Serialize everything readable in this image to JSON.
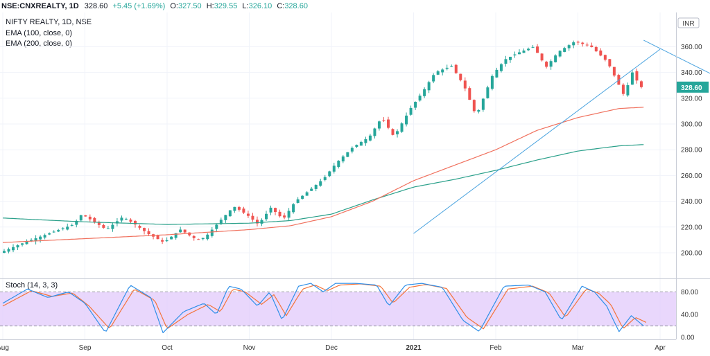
{
  "quote": {
    "symbol": "NSE:CNXREALTY, 1D",
    "last": "328.60",
    "change": "+5.45 (+1.69%)",
    "open_label": "O:",
    "open": "327.50",
    "high_label": "H:",
    "high": "329.55",
    "low_label": "L:",
    "low": "326.10",
    "close_label": "C:",
    "close": "328.60"
  },
  "legend": {
    "title": "NIFTY REALTY, 1D, NSE",
    "ema100": "EMA (100, close, 0)",
    "ema200": "EMA (200, close, 0)",
    "stoch": "Stoch (14, 3, 3)"
  },
  "currency_badge": "INR",
  "last_price_tag": "328.60",
  "colors": {
    "up": "#26a69a",
    "down": "#ef5350",
    "ema100": "#f0715e",
    "ema200": "#2aa08a",
    "trendline": "#4aa3df",
    "stoch_k": "#2f8fe8",
    "stoch_d": "#f4743b",
    "stoch_band": "#e2c9fb",
    "price_tag": "#26a69a"
  },
  "chart_data": [
    {
      "type": "candlestick",
      "y_ticks": [
        200,
        220,
        240,
        260,
        280,
        300,
        320,
        340,
        360
      ],
      "ylim": [
        190,
        375
      ],
      "x_labels": [
        "Aug",
        "Sep",
        "Oct",
        "Nov",
        "Dec",
        "2021",
        "Feb",
        "Mar",
        "Apr"
      ],
      "bullish_trendline": [
        [
          5.0,
          215
        ],
        [
          8.0,
          358
        ]
      ],
      "bearish_trendline": [
        [
          7.8,
          365
        ],
        [
          8.9,
          330
        ]
      ],
      "ema100": [
        [
          0.0,
          208
        ],
        [
          1.0,
          211
        ],
        [
          2.0,
          214
        ],
        [
          3.0,
          218
        ],
        [
          3.5,
          221
        ],
        [
          4.0,
          228
        ],
        [
          4.5,
          240
        ],
        [
          5.0,
          256
        ],
        [
          5.5,
          268
        ],
        [
          6.0,
          280
        ],
        [
          6.5,
          295
        ],
        [
          7.0,
          305
        ],
        [
          7.5,
          312
        ],
        [
          7.8,
          313
        ]
      ],
      "ema200": [
        [
          0.0,
          227
        ],
        [
          1.0,
          224
        ],
        [
          2.0,
          222
        ],
        [
          3.0,
          223
        ],
        [
          3.5,
          225
        ],
        [
          4.0,
          230
        ],
        [
          4.5,
          241
        ],
        [
          5.0,
          251
        ],
        [
          5.5,
          257
        ],
        [
          6.0,
          264
        ],
        [
          6.5,
          272
        ],
        [
          7.0,
          279
        ],
        [
          7.5,
          283
        ],
        [
          7.8,
          284
        ]
      ],
      "anchors": [
        [
          0.0,
          200
        ],
        [
          0.3,
          208
        ],
        [
          0.6,
          215
        ],
        [
          0.9,
          222
        ],
        [
          1.0,
          230
        ],
        [
          1.1,
          226
        ],
        [
          1.3,
          218
        ],
        [
          1.5,
          228
        ],
        [
          1.65,
          222
        ],
        [
          1.8,
          215
        ],
        [
          2.0,
          208
        ],
        [
          2.2,
          218
        ],
        [
          2.4,
          210
        ],
        [
          2.5,
          212
        ],
        [
          2.7,
          226
        ],
        [
          2.85,
          236
        ],
        [
          3.0,
          230
        ],
        [
          3.15,
          222
        ],
        [
          3.3,
          235
        ],
        [
          3.45,
          226
        ],
        [
          3.6,
          240
        ],
        [
          3.8,
          250
        ],
        [
          3.95,
          258
        ],
        [
          4.1,
          270
        ],
        [
          4.3,
          282
        ],
        [
          4.5,
          290
        ],
        [
          4.65,
          305
        ],
        [
          4.8,
          290
        ],
        [
          5.0,
          312
        ],
        [
          5.15,
          325
        ],
        [
          5.3,
          340
        ],
        [
          5.5,
          345
        ],
        [
          5.65,
          330
        ],
        [
          5.8,
          306
        ],
        [
          6.0,
          338
        ],
        [
          6.15,
          350
        ],
        [
          6.3,
          355
        ],
        [
          6.5,
          360
        ],
        [
          6.65,
          344
        ],
        [
          6.8,
          356
        ],
        [
          7.0,
          364
        ],
        [
          7.2,
          360
        ],
        [
          7.4,
          348
        ],
        [
          7.6,
          322
        ],
        [
          7.7,
          340
        ],
        [
          7.8,
          328.6
        ]
      ]
    },
    {
      "type": "line",
      "name": "Stoch (14, 3, 3)",
      "y_ticks": [
        0.0,
        40.0,
        80.0
      ],
      "ylim": [
        0,
        100
      ],
      "band": [
        20,
        80
      ],
      "k_anchors": [
        [
          0.0,
          60
        ],
        [
          0.3,
          85
        ],
        [
          0.55,
          70
        ],
        [
          0.8,
          80
        ],
        [
          1.0,
          60
        ],
        [
          1.25,
          8
        ],
        [
          1.55,
          92
        ],
        [
          1.8,
          70
        ],
        [
          1.95,
          8
        ],
        [
          2.2,
          45
        ],
        [
          2.45,
          60
        ],
        [
          2.6,
          40
        ],
        [
          2.75,
          90
        ],
        [
          2.9,
          85
        ],
        [
          3.1,
          55
        ],
        [
          3.25,
          80
        ],
        [
          3.4,
          30
        ],
        [
          3.6,
          90
        ],
        [
          3.75,
          95
        ],
        [
          3.9,
          80
        ],
        [
          4.05,
          95
        ],
        [
          4.3,
          95
        ],
        [
          4.55,
          92
        ],
        [
          4.7,
          55
        ],
        [
          4.9,
          92
        ],
        [
          5.1,
          95
        ],
        [
          5.35,
          88
        ],
        [
          5.6,
          30
        ],
        [
          5.8,
          10
        ],
        [
          6.1,
          90
        ],
        [
          6.4,
          92
        ],
        [
          6.6,
          80
        ],
        [
          6.8,
          30
        ],
        [
          7.05,
          90
        ],
        [
          7.2,
          80
        ],
        [
          7.35,
          55
        ],
        [
          7.5,
          10
        ],
        [
          7.65,
          38
        ],
        [
          7.8,
          20
        ]
      ],
      "d_anchors": [
        [
          0.0,
          55
        ],
        [
          0.35,
          82
        ],
        [
          0.6,
          72
        ],
        [
          0.85,
          78
        ],
        [
          1.05,
          55
        ],
        [
          1.3,
          15
        ],
        [
          1.6,
          85
        ],
        [
          1.85,
          65
        ],
        [
          2.0,
          15
        ],
        [
          2.25,
          40
        ],
        [
          2.5,
          58
        ],
        [
          2.65,
          45
        ],
        [
          2.8,
          85
        ],
        [
          2.95,
          80
        ],
        [
          3.15,
          58
        ],
        [
          3.3,
          75
        ],
        [
          3.45,
          38
        ],
        [
          3.65,
          85
        ],
        [
          3.8,
          92
        ],
        [
          3.95,
          82
        ],
        [
          4.1,
          92
        ],
        [
          4.35,
          94
        ],
        [
          4.6,
          90
        ],
        [
          4.75,
          60
        ],
        [
          4.95,
          88
        ],
        [
          5.15,
          93
        ],
        [
          5.4,
          86
        ],
        [
          5.65,
          35
        ],
        [
          5.85,
          15
        ],
        [
          6.15,
          85
        ],
        [
          6.45,
          90
        ],
        [
          6.65,
          78
        ],
        [
          6.85,
          35
        ],
        [
          7.1,
          85
        ],
        [
          7.25,
          78
        ],
        [
          7.4,
          58
        ],
        [
          7.55,
          15
        ],
        [
          7.7,
          35
        ],
        [
          7.85,
          25
        ]
      ]
    }
  ]
}
